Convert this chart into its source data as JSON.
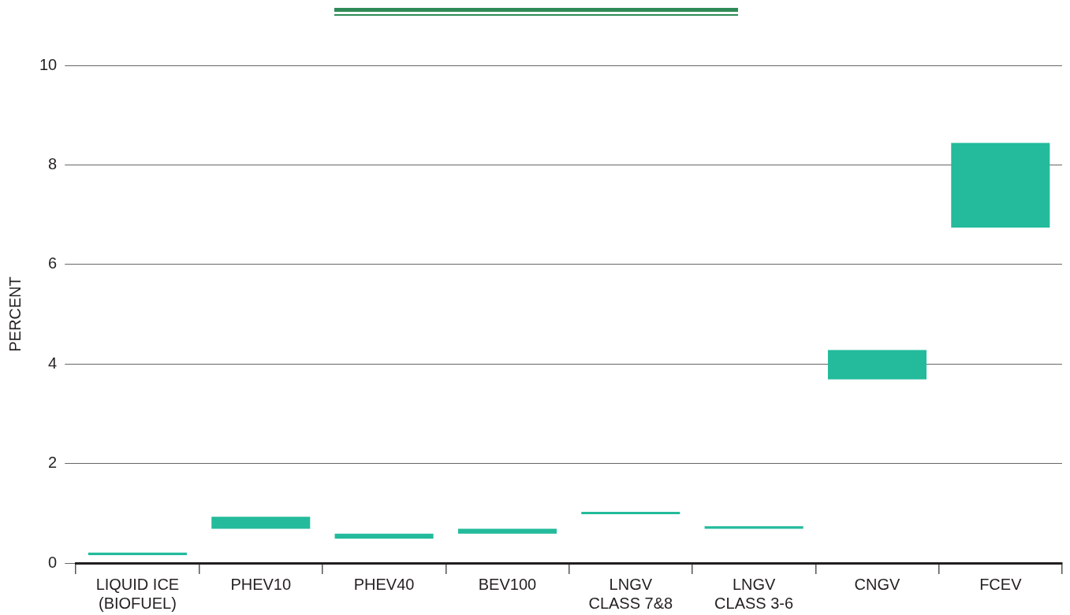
{
  "chart_data": {
    "type": "bar",
    "ylabel": "PERCENT",
    "categories": [
      "LIQUID ICE\n(BIOFUEL)",
      "PHEV10",
      "PHEV40",
      "BEV100",
      "LNGV\nCLASS 7&8",
      "LNGV\nCLASS 3-6",
      "CNGV",
      "FCEV"
    ],
    "base": [
      0.16,
      0.69,
      0.49,
      0.59,
      0.98,
      0.69,
      3.69,
      6.74
    ],
    "values": [
      0.05,
      0.24,
      0.1,
      0.1,
      0.05,
      0.05,
      0.59,
      1.7
    ],
    "color": "#23bb9b",
    "ylim": [
      0,
      10
    ],
    "yticks": [
      0,
      2,
      4,
      6,
      8,
      10
    ],
    "grid": "y",
    "legend": false
  }
}
